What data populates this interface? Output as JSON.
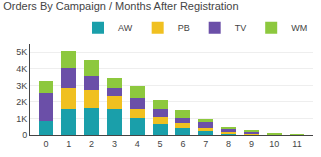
{
  "chart_data": {
    "type": "bar",
    "stacked": true,
    "title": "Orders By Campaign / Months After Registration",
    "categories": [
      0,
      1,
      2,
      3,
      4,
      5,
      6,
      7,
      8,
      9,
      10,
      11
    ],
    "series": [
      {
        "name": "AW",
        "color": "#1a9faa",
        "values": [
          850,
          1550,
          1650,
          1550,
          1000,
          650,
          400,
          250,
          120,
          60,
          20,
          5
        ]
      },
      {
        "name": "PB",
        "color": "#f0c020",
        "values": [
          0,
          1300,
          1050,
          800,
          550,
          450,
          350,
          200,
          80,
          60,
          20,
          5
        ]
      },
      {
        "name": "TV",
        "color": "#6b4fa8",
        "values": [
          1700,
          1200,
          850,
          500,
          700,
          500,
          300,
          350,
          200,
          80,
          20,
          0
        ]
      },
      {
        "name": "WM",
        "color": "#8dc83e",
        "values": [
          700,
          1050,
          1000,
          600,
          700,
          500,
          450,
          150,
          100,
          50,
          20,
          5
        ]
      }
    ],
    "ylim": [
      0,
      5500
    ],
    "yticks": [
      0,
      {
        "value": 1000,
        "label": "1K"
      },
      {
        "value": 2000,
        "label": "2K"
      },
      {
        "value": 3000,
        "label": "3K"
      },
      {
        "value": 4000,
        "label": "4K"
      },
      {
        "value": 5000,
        "label": "5K"
      }
    ],
    "grid": true,
    "legend": "upper right"
  }
}
